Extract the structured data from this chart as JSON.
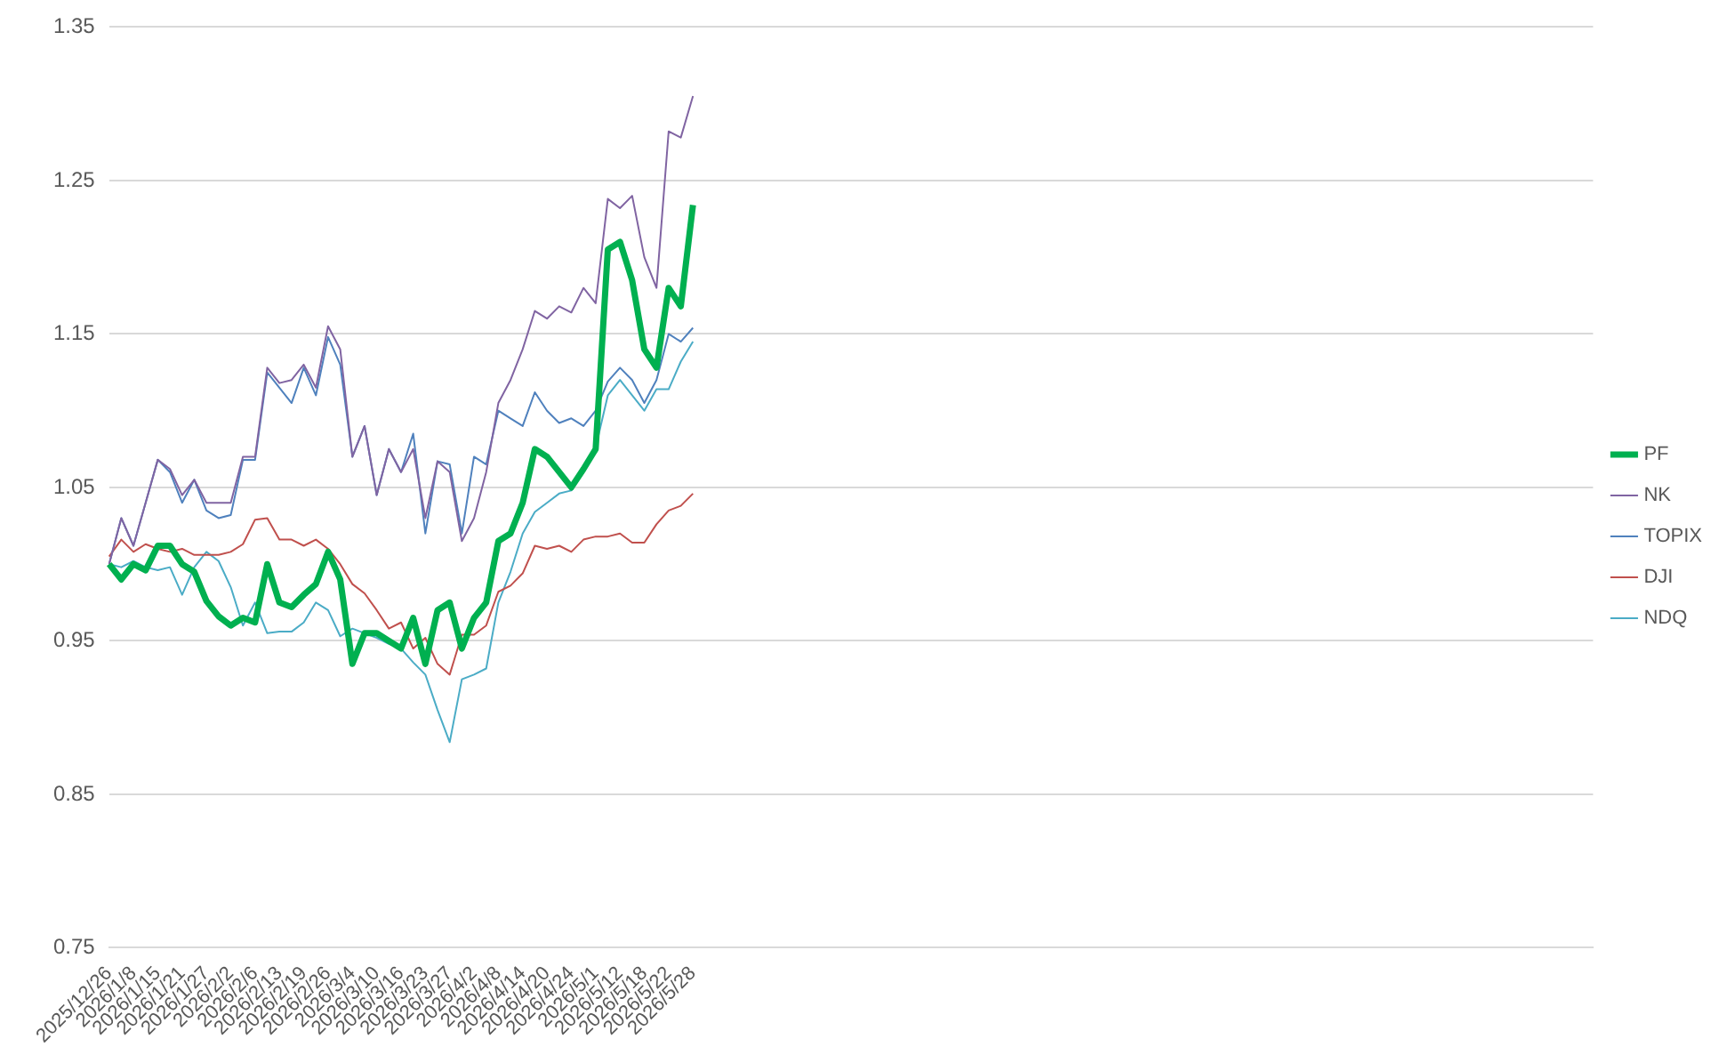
{
  "chart_data": {
    "type": "line",
    "categories": [
      "2025/12/26",
      null,
      "2026/1/8",
      null,
      "2026/1/15",
      null,
      "2026/1/21",
      null,
      "2026/1/27",
      null,
      "2026/2/2",
      null,
      "2026/2/6",
      null,
      "2026/2/13",
      null,
      "2026/2/19",
      null,
      "2026/2/26",
      null,
      "2026/3/4",
      null,
      "2026/3/10",
      null,
      "2026/3/16",
      null,
      "2026/3/23",
      null,
      "2026/3/27",
      null,
      "2026/4/2",
      null,
      "2026/4/8",
      null,
      "2026/4/14",
      null,
      "2026/4/20",
      null,
      "2026/4/24",
      null,
      "2026/5/1",
      null,
      "2026/5/12",
      null,
      "2026/5/18",
      null,
      "2026/5/22",
      null,
      "2026/5/28",
      null,
      null,
      null,
      null,
      null,
      null,
      null,
      null,
      null,
      null,
      null,
      null,
      null,
      null,
      null,
      null,
      null,
      null,
      null,
      null,
      null,
      null,
      null,
      null,
      null,
      null,
      null,
      null,
      null,
      null,
      null,
      null,
      null,
      null,
      null,
      null,
      null,
      null,
      null,
      null,
      null,
      null,
      null,
      null,
      null,
      null,
      null,
      null,
      null,
      null,
      null,
      null,
      null,
      null,
      null,
      null,
      null,
      null,
      null,
      null,
      null,
      null,
      null,
      null,
      null,
      null,
      null,
      null,
      null,
      null,
      null,
      null,
      null,
      null
    ],
    "series": [
      {
        "name": "PF",
        "color": "#00b050",
        "values": [
          1.0,
          0.99,
          1.0,
          0.996,
          1.012,
          1.012,
          1.0,
          0.995,
          0.976,
          0.966,
          0.96,
          0.965,
          0.962,
          1.0,
          0.975,
          0.972,
          0.98,
          0.987,
          1.008,
          0.99,
          0.935,
          0.955,
          0.955,
          0.95,
          0.945,
          0.965,
          0.935,
          0.97,
          0.975,
          0.945,
          0.965,
          0.975,
          1.015,
          1.02,
          1.04,
          1.075,
          1.07,
          1.06,
          1.05,
          1.062,
          1.075,
          1.205,
          1.21,
          1.185,
          1.14,
          1.128,
          1.18,
          1.168,
          1.234,
          null,
          null,
          null,
          null,
          null,
          null,
          null,
          null,
          null,
          null,
          null,
          null,
          null,
          null,
          null,
          null,
          null,
          null,
          null,
          null,
          null,
          null,
          null,
          null,
          null,
          null,
          null,
          null,
          null,
          null,
          null,
          null,
          null,
          null,
          null,
          null,
          null,
          null,
          null,
          null,
          null,
          null,
          null,
          null,
          null,
          null,
          null,
          null,
          null,
          null,
          null,
          null,
          null,
          null,
          null,
          null,
          null,
          null,
          null,
          null,
          null,
          null,
          null,
          null,
          null,
          null,
          null,
          null,
          null,
          null,
          null,
          null,
          null,
          null
        ]
      },
      {
        "name": "NK",
        "color": "#8064a2",
        "values": [
          1.0,
          1.03,
          1.012,
          1.04,
          1.068,
          1.062,
          1.045,
          1.055,
          1.04,
          1.04,
          1.04,
          1.07,
          1.07,
          1.128,
          1.118,
          1.12,
          1.13,
          1.115,
          1.155,
          1.14,
          1.07,
          1.09,
          1.045,
          1.075,
          1.06,
          1.075,
          1.03,
          1.067,
          1.06,
          1.015,
          1.03,
          1.06,
          1.105,
          1.12,
          1.14,
          1.165,
          1.16,
          1.168,
          1.164,
          1.18,
          1.17,
          1.238,
          1.232,
          1.24,
          1.2,
          1.18,
          1.282,
          1.278,
          1.305,
          null,
          null,
          null,
          null,
          null,
          null,
          null,
          null,
          null,
          null,
          null,
          null,
          null,
          null,
          null,
          null,
          null,
          null,
          null,
          null,
          null,
          null,
          null,
          null,
          null,
          null,
          null,
          null,
          null,
          null,
          null,
          null,
          null,
          null,
          null,
          null,
          null,
          null,
          null,
          null,
          null,
          null,
          null,
          null,
          null,
          null,
          null,
          null,
          null,
          null,
          null,
          null,
          null,
          null,
          null,
          null,
          null,
          null,
          null,
          null,
          null,
          null,
          null,
          null,
          null,
          null,
          null,
          null,
          null,
          null,
          null,
          null,
          null,
          null
        ]
      },
      {
        "name": "TOPIX",
        "color": "#4f81bd",
        "values": [
          1.0,
          1.03,
          1.012,
          1.04,
          1.068,
          1.06,
          1.04,
          1.055,
          1.035,
          1.03,
          1.032,
          1.068,
          1.068,
          1.125,
          1.115,
          1.105,
          1.128,
          1.11,
          1.148,
          1.13,
          1.07,
          1.09,
          1.045,
          1.075,
          1.06,
          1.085,
          1.02,
          1.067,
          1.065,
          1.02,
          1.07,
          1.065,
          1.1,
          1.095,
          1.09,
          1.112,
          1.1,
          1.092,
          1.095,
          1.09,
          1.1,
          1.119,
          1.128,
          1.12,
          1.105,
          1.12,
          1.15,
          1.145,
          1.154,
          null,
          null,
          null,
          null,
          null,
          null,
          null,
          null,
          null,
          null,
          null,
          null,
          null,
          null,
          null,
          null,
          null,
          null,
          null,
          null,
          null,
          null,
          null,
          null,
          null,
          null,
          null,
          null,
          null,
          null,
          null,
          null,
          null,
          null,
          null,
          null,
          null,
          null,
          null,
          null,
          null,
          null,
          null,
          null,
          null,
          null,
          null,
          null,
          null,
          null,
          null,
          null,
          null,
          null,
          null,
          null,
          null,
          null,
          null,
          null,
          null,
          null,
          null,
          null,
          null,
          null,
          null,
          null,
          null,
          null,
          null,
          null,
          null,
          null
        ]
      },
      {
        "name": "DJI",
        "color": "#c0504d",
        "values": [
          1.005,
          1.016,
          1.008,
          1.013,
          1.01,
          1.008,
          1.01,
          1.006,
          1.006,
          1.006,
          1.008,
          1.013,
          1.029,
          1.03,
          1.016,
          1.016,
          1.012,
          1.016,
          1.01,
          1.0,
          0.987,
          0.981,
          0.97,
          0.958,
          0.962,
          0.945,
          0.952,
          0.935,
          0.928,
          0.954,
          0.954,
          0.96,
          0.982,
          0.986,
          0.994,
          1.012,
          1.01,
          1.012,
          1.008,
          1.016,
          1.018,
          1.018,
          1.02,
          1.014,
          1.014,
          1.026,
          1.035,
          1.038,
          1.046,
          null,
          null,
          null,
          null,
          null,
          null,
          null,
          null,
          null,
          null,
          null,
          null,
          null,
          null,
          null,
          null,
          null,
          null,
          null,
          null,
          null,
          null,
          null,
          null,
          null,
          null,
          null,
          null,
          null,
          null,
          null,
          null,
          null,
          null,
          null,
          null,
          null,
          null,
          null,
          null,
          null,
          null,
          null,
          null,
          null,
          null,
          null,
          null,
          null,
          null,
          null,
          null,
          null,
          null,
          null,
          null,
          null,
          null,
          null,
          null,
          null,
          null,
          null,
          null,
          null,
          null,
          null,
          null,
          null,
          null,
          null,
          null,
          null,
          null
        ]
      },
      {
        "name": "NDQ",
        "color": "#4bacc6",
        "values": [
          1.0,
          0.998,
          1.002,
          0.998,
          0.996,
          0.998,
          0.98,
          0.998,
          1.008,
          1.002,
          0.985,
          0.96,
          0.975,
          0.955,
          0.956,
          0.956,
          0.962,
          0.975,
          0.97,
          0.953,
          0.958,
          0.955,
          0.952,
          0.948,
          0.945,
          0.936,
          0.928,
          0.905,
          0.884,
          0.925,
          0.928,
          0.932,
          0.975,
          0.995,
          1.02,
          1.034,
          1.04,
          1.046,
          1.048,
          1.06,
          1.076,
          1.11,
          1.12,
          1.11,
          1.1,
          1.114,
          1.114,
          1.132,
          1.145,
          null,
          null,
          null,
          null,
          null,
          null,
          null,
          null,
          null,
          null,
          null,
          null,
          null,
          null,
          null,
          null,
          null,
          null,
          null,
          null,
          null,
          null,
          null,
          null,
          null,
          null,
          null,
          null,
          null,
          null,
          null,
          null,
          null,
          null,
          null,
          null,
          null,
          null,
          null,
          null,
          null,
          null,
          null,
          null,
          null,
          null,
          null,
          null,
          null,
          null,
          null,
          null,
          null,
          null,
          null,
          null,
          null,
          null,
          null,
          null,
          null,
          null,
          null,
          null,
          null,
          null,
          null,
          null,
          null,
          null,
          null,
          null,
          null,
          null
        ]
      }
    ],
    "ylim": [
      0.75,
      1.35
    ],
    "yticks": [
      0.75,
      0.85,
      0.95,
      1.05,
      1.15,
      1.25,
      1.35
    ],
    "grid": "y",
    "legend": "right",
    "marker": "none",
    "line_style": "solid"
  }
}
